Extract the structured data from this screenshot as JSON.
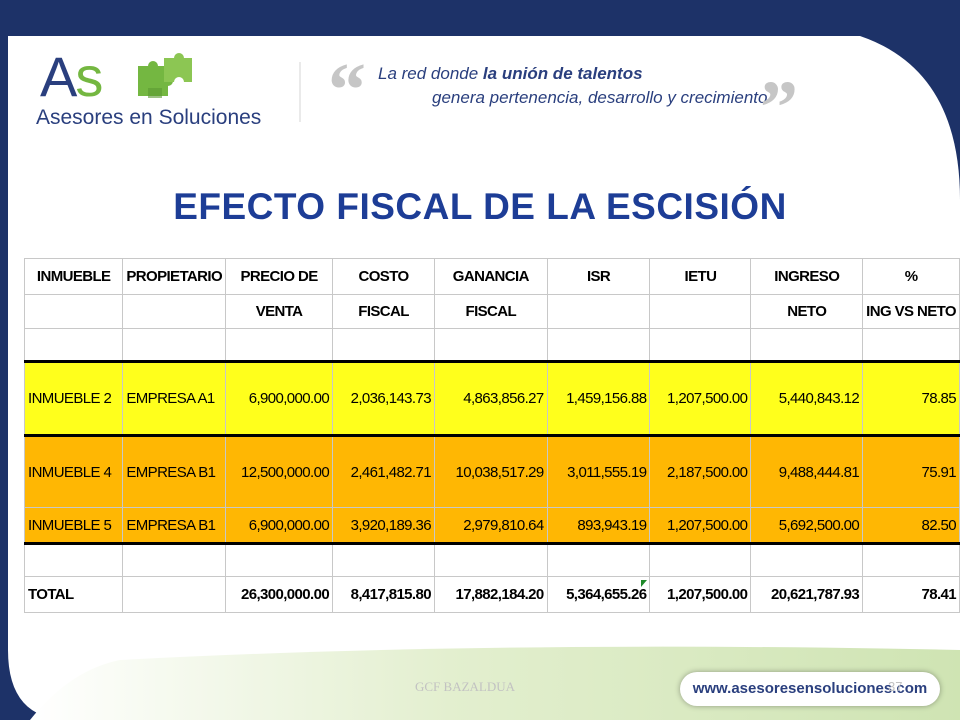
{
  "brand": {
    "logo_letters": "As",
    "logo_name": "Asesores en Soluciones",
    "tagline_line1_pre": "La red donde ",
    "tagline_line1_bold": "la unión de talentos",
    "tagline_line2": "genera pertenencia, desarrollo y crecimiento",
    "url": "www.asesoresensoluciones.com"
  },
  "title": "EFECTO FISCAL DE LA ESCISIÓN",
  "table": {
    "header_row1": [
      "INMUEBLE",
      "PROPIETARIO",
      "PRECIO DE",
      "COSTO",
      "GANANCIA",
      "ISR",
      "IETU",
      "INGRESO",
      "%"
    ],
    "header_row2": [
      "",
      "",
      "VENTA",
      "FISCAL",
      "FISCAL",
      "",
      "",
      "NETO",
      "ING VS NETO"
    ],
    "rows": [
      [
        "INMUEBLE 2",
        "EMPRESA A1",
        "6,900,000.00",
        "2,036,143.73",
        "4,863,856.27",
        "1,459,156.88",
        "1,207,500.00",
        "5,440,843.12",
        "78.85"
      ],
      [
        "INMUEBLE 4",
        "EMPRESA B1",
        "12,500,000.00",
        "2,461,482.71",
        "10,038,517.29",
        "3,011,555.19",
        "2,187,500.00",
        "9,488,444.81",
        "75.91"
      ],
      [
        "INMUEBLE 5",
        "EMPRESA B1",
        "6,900,000.00",
        "3,920,189.36",
        "2,979,810.64",
        "893,943.19",
        "1,207,500.00",
        "5,692,500.00",
        "82.50"
      ]
    ],
    "total": [
      "TOTAL",
      "",
      "26,300,000.00",
      "8,417,815.80",
      "17,882,184.20",
      "5,364,655.26",
      "1,207,500.00",
      "20,621,787.93",
      "78.41"
    ]
  },
  "footer": {
    "author": "GCF BAZALDUA",
    "page_number": "37"
  },
  "colors": {
    "navy": "#1d3268",
    "title_blue": "#1d3d96",
    "row_yellow": "#ffff1c",
    "row_orange": "#ffb703",
    "logo_green": "#74b741"
  }
}
